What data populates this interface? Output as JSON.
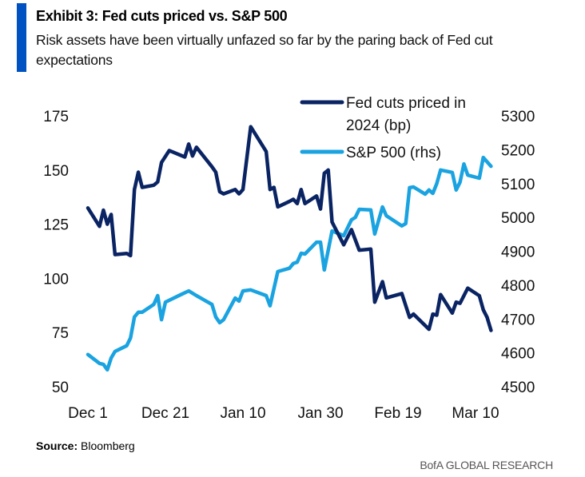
{
  "header": {
    "title": "Exhibit 3: Fed cuts priced vs. S&P 500",
    "subtitle": "Risk assets have been virtually unfazed so far by the paring back of Fed cut expectations"
  },
  "footer": {
    "source_label": "Source:",
    "source_value": "Bloomberg",
    "brand": "BofA GLOBAL RESEARCH"
  },
  "chart_data": {
    "type": "line",
    "title": "Exhibit 3: Fed cuts priced vs. S&P 500",
    "xlabel": "",
    "ylabel_left": "",
    "ylabel_right": "",
    "grid": false,
    "legend_position": "top-right",
    "x_ticks": [
      "Dec 1",
      "Dec 21",
      "Jan 10",
      "Jan 30",
      "Feb 19",
      "Mar 10"
    ],
    "x_tick_dates": [
      "2023-12-01",
      "2023-12-21",
      "2024-01-10",
      "2024-01-30",
      "2024-02-19",
      "2024-03-10"
    ],
    "xlim": [
      "2023-12-01",
      "2024-03-14"
    ],
    "y_left": {
      "ticks": [
        175,
        150,
        125,
        100,
        75,
        50
      ],
      "ylim": [
        50,
        175
      ]
    },
    "y_right": {
      "ticks": [
        5300,
        5200,
        5100,
        5000,
        4900,
        4800,
        4700,
        4600,
        4500
      ],
      "ylim": [
        4500,
        5300
      ]
    },
    "series": [
      {
        "name": "Fed cuts priced in 2024 (bp)",
        "legend_lines": [
          "Fed cuts priced in",
          "2024 (bp)"
        ],
        "axis": "left",
        "color": "#0a2463",
        "points": [
          [
            "2023-12-01",
            132.5
          ],
          [
            "2023-12-04",
            124
          ],
          [
            "2023-12-05",
            131.5
          ],
          [
            "2023-12-06",
            125
          ],
          [
            "2023-12-07",
            129.5
          ],
          [
            "2023-12-08",
            111
          ],
          [
            "2023-12-11",
            111.5
          ],
          [
            "2023-12-12",
            110.5
          ],
          [
            "2023-12-13",
            141
          ],
          [
            "2023-12-14",
            149
          ],
          [
            "2023-12-15",
            142
          ],
          [
            "2023-12-18",
            143
          ],
          [
            "2023-12-19",
            144.5
          ],
          [
            "2023-12-20",
            153.5
          ],
          [
            "2023-12-22",
            159
          ],
          [
            "2023-12-26",
            156
          ],
          [
            "2023-12-27",
            162
          ],
          [
            "2023-12-28",
            156.5
          ],
          [
            "2023-12-29",
            160.5
          ],
          [
            "2024-01-02",
            151.5
          ],
          [
            "2024-01-03",
            149
          ],
          [
            "2024-01-04",
            140
          ],
          [
            "2024-01-05",
            139
          ],
          [
            "2024-01-08",
            141
          ],
          [
            "2024-01-09",
            139
          ],
          [
            "2024-01-10",
            141
          ],
          [
            "2024-01-12",
            170
          ],
          [
            "2024-01-16",
            158.5
          ],
          [
            "2024-01-17",
            141
          ],
          [
            "2024-01-18",
            142
          ],
          [
            "2024-01-19",
            133
          ],
          [
            "2024-01-22",
            135.5
          ],
          [
            "2024-01-23",
            136.5
          ],
          [
            "2024-01-24",
            134.5
          ],
          [
            "2024-01-25",
            141
          ],
          [
            "2024-01-26",
            134.5
          ],
          [
            "2024-01-29",
            138
          ],
          [
            "2024-01-30",
            132
          ],
          [
            "2024-01-31",
            148.5
          ],
          [
            "2024-02-01",
            150
          ],
          [
            "2024-02-02",
            126
          ],
          [
            "2024-02-05",
            115.5
          ],
          [
            "2024-02-07",
            122.5
          ],
          [
            "2024-02-09",
            113
          ],
          [
            "2024-02-12",
            113.5
          ],
          [
            "2024-02-13",
            89
          ],
          [
            "2024-02-15",
            98.5
          ],
          [
            "2024-02-16",
            91
          ],
          [
            "2024-02-20",
            93
          ],
          [
            "2024-02-22",
            82
          ],
          [
            "2024-02-23",
            83.5
          ],
          [
            "2024-02-27",
            76.5
          ],
          [
            "2024-02-28",
            83.5
          ],
          [
            "2024-02-29",
            83
          ],
          [
            "2024-03-01",
            92.5
          ],
          [
            "2024-03-04",
            84
          ],
          [
            "2024-03-05",
            89
          ],
          [
            "2024-03-06",
            88.5
          ],
          [
            "2024-03-08",
            95.5
          ],
          [
            "2024-03-11",
            92
          ],
          [
            "2024-03-12",
            85.5
          ],
          [
            "2024-03-13",
            82
          ],
          [
            "2024-03-14",
            76
          ]
        ]
      },
      {
        "name": "S&P 500 (rhs)",
        "legend_lines": [
          "S&P 500 (rhs)"
        ],
        "axis": "right",
        "color": "#1aa3e0",
        "points": [
          [
            "2023-12-01",
            4595
          ],
          [
            "2023-12-04",
            4569
          ],
          [
            "2023-12-05",
            4566
          ],
          [
            "2023-12-06",
            4550
          ],
          [
            "2023-12-07",
            4585
          ],
          [
            "2023-12-08",
            4604
          ],
          [
            "2023-12-11",
            4621
          ],
          [
            "2023-12-12",
            4644
          ],
          [
            "2023-12-13",
            4706
          ],
          [
            "2023-12-14",
            4720
          ],
          [
            "2023-12-15",
            4720
          ],
          [
            "2023-12-18",
            4743
          ],
          [
            "2023-12-19",
            4769
          ],
          [
            "2023-12-20",
            4698
          ],
          [
            "2023-12-21",
            4750
          ],
          [
            "2023-12-25",
            4772
          ],
          [
            "2023-12-27",
            4783
          ],
          [
            "2023-12-29",
            4769
          ],
          [
            "2024-01-02",
            4743
          ],
          [
            "2024-01-03",
            4706
          ],
          [
            "2024-01-04",
            4689
          ],
          [
            "2024-01-05",
            4698
          ],
          [
            "2024-01-08",
            4762
          ],
          [
            "2024-01-09",
            4753
          ],
          [
            "2024-01-10",
            4783
          ],
          [
            "2024-01-12",
            4786
          ],
          [
            "2024-01-16",
            4769
          ],
          [
            "2024-01-17",
            4739
          ],
          [
            "2024-01-19",
            4840
          ],
          [
            "2024-01-22",
            4850
          ],
          [
            "2024-01-23",
            4864
          ],
          [
            "2024-01-24",
            4868
          ],
          [
            "2024-01-25",
            4894
          ],
          [
            "2024-01-26",
            4892
          ],
          [
            "2024-01-29",
            4927
          ],
          [
            "2024-01-30",
            4927
          ],
          [
            "2024-01-31",
            4845
          ],
          [
            "2024-02-02",
            4960
          ],
          [
            "2024-02-05",
            4946
          ],
          [
            "2024-02-07",
            4993
          ],
          [
            "2024-02-08",
            5000
          ],
          [
            "2024-02-09",
            5024
          ],
          [
            "2024-02-12",
            5022
          ],
          [
            "2024-02-13",
            4951
          ],
          [
            "2024-02-15",
            5031
          ],
          [
            "2024-02-16",
            5005
          ],
          [
            "2024-02-20",
            4975
          ],
          [
            "2024-02-21",
            4982
          ],
          [
            "2024-02-22",
            5088
          ],
          [
            "2024-02-23",
            5090
          ],
          [
            "2024-02-26",
            5069
          ],
          [
            "2024-02-27",
            5081
          ],
          [
            "2024-02-28",
            5071
          ],
          [
            "2024-02-29",
            5100
          ],
          [
            "2024-03-01",
            5140
          ],
          [
            "2024-03-04",
            5133
          ],
          [
            "2024-03-05",
            5081
          ],
          [
            "2024-03-06",
            5104
          ],
          [
            "2024-03-07",
            5158
          ],
          [
            "2024-03-08",
            5125
          ],
          [
            "2024-03-11",
            5116
          ],
          [
            "2024-03-12",
            5177
          ],
          [
            "2024-03-14",
            5151
          ]
        ]
      }
    ]
  }
}
